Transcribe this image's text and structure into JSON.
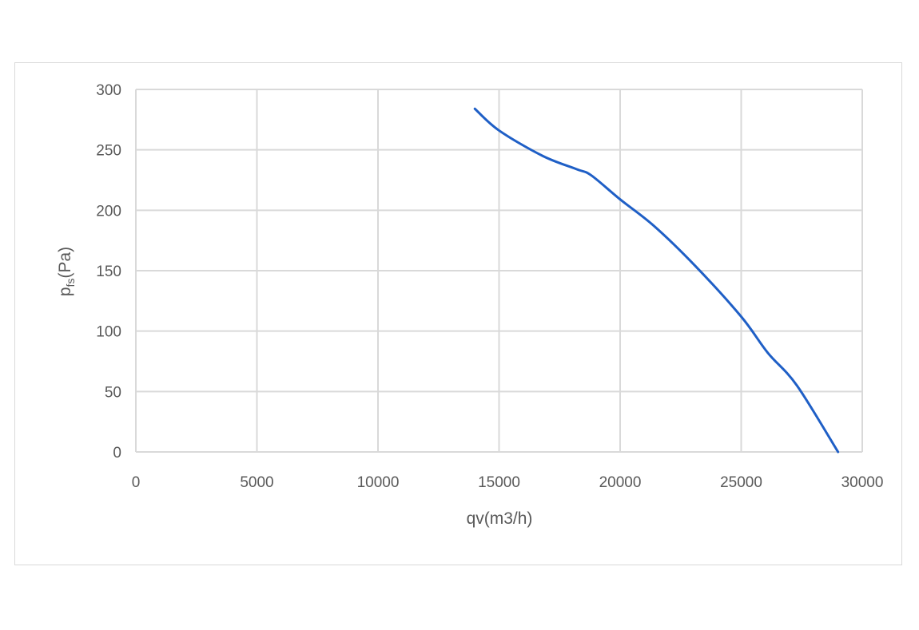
{
  "chart_data": {
    "type": "line",
    "title": "",
    "xlabel": "qv(m3/h)",
    "ylabel": {
      "main": "p",
      "sub": "fs",
      "unit": "(Pa)"
    },
    "xlim": [
      0,
      30000
    ],
    "ylim": [
      0,
      300
    ],
    "xticks": [
      0,
      5000,
      10000,
      15000,
      20000,
      25000,
      30000
    ],
    "yticks": [
      0,
      50,
      100,
      150,
      200,
      250,
      300
    ],
    "grid": true,
    "legend": "none",
    "series": [
      {
        "color": "#1f5fc6",
        "x": [
          14000,
          15000,
          16800,
          18200,
          18800,
          20000,
          21400,
          23100,
          25000,
          26100,
          27300,
          29000
        ],
        "y": [
          284,
          266,
          245,
          234,
          229,
          209,
          187,
          154,
          112,
          82,
          55,
          0
        ]
      }
    ]
  }
}
